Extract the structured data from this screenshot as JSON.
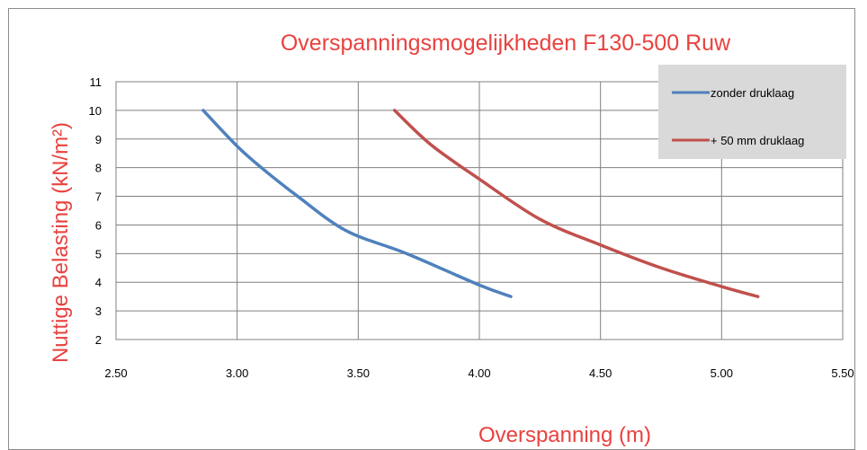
{
  "chart_data": {
    "type": "line",
    "title": "Overspanningsmogelijkheden F130-500 Ruw",
    "xlabel": "Overspanning (m)",
    "ylabel": "Nuttige Belasting (kN/m²)",
    "xlim": [
      2.5,
      5.5
    ],
    "ylim": [
      2,
      11
    ],
    "xticks": [
      "2.50",
      "3.00",
      "3.50",
      "4.00",
      "4.50",
      "5.00",
      "5.50"
    ],
    "yticks": [
      "2",
      "3",
      "4",
      "5",
      "6",
      "7",
      "8",
      "9",
      "10",
      "11"
    ],
    "grid": true,
    "legend_position": "top-right",
    "series": [
      {
        "name": "zonder druklaag",
        "color": "#4f81bd",
        "x": [
          2.86,
          3.0,
          3.1,
          3.25,
          3.45,
          3.7,
          4.0,
          4.13
        ],
        "y": [
          10,
          8.75,
          8.0,
          7.0,
          5.8,
          5.0,
          3.9,
          3.5
        ]
      },
      {
        "name": "+ 50 mm druklaag",
        "color": "#c0504d",
        "x": [
          3.65,
          3.8,
          4.0,
          4.25,
          4.5,
          4.75,
          5.0,
          5.15
        ],
        "y": [
          10,
          8.8,
          7.6,
          6.2,
          5.3,
          4.5,
          3.85,
          3.5
        ]
      }
    ]
  }
}
